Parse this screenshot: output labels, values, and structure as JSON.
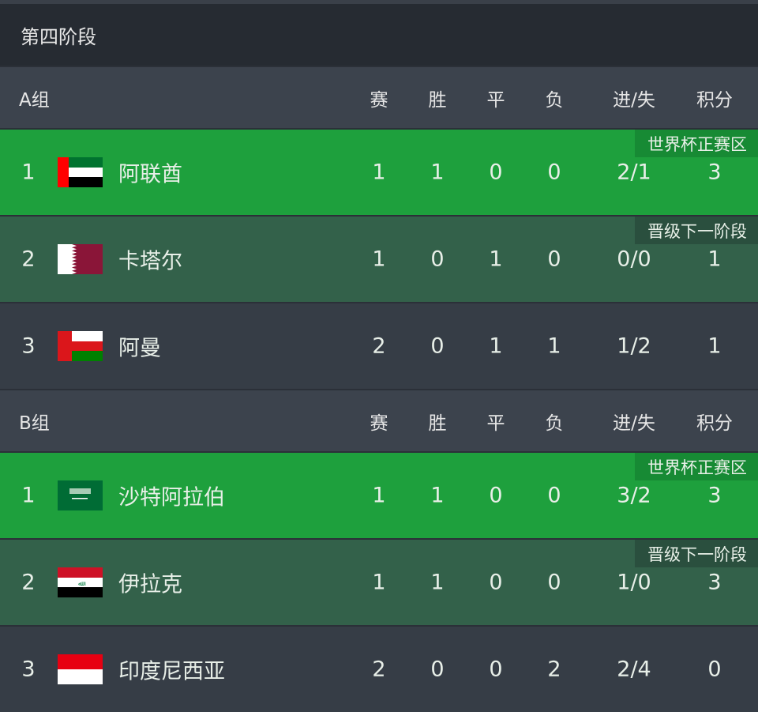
{
  "stage_title": "第四阶段",
  "columns": [
    "赛",
    "胜",
    "平",
    "负",
    "进/失",
    "积分"
  ],
  "colors": {
    "qualified": "#1ea03d",
    "next_stage": "#33614a",
    "default": "#363d46",
    "header": "#3c434d"
  },
  "groups": [
    {
      "name": "A组",
      "rows": [
        {
          "rank": "1",
          "team": "阿联酋",
          "flag": "uae-flag",
          "badge": "世界杯正赛区",
          "stats": [
            "1",
            "1",
            "0",
            "0",
            "2/1",
            "3"
          ]
        },
        {
          "rank": "2",
          "team": "卡塔尔",
          "flag": "qatar-flag",
          "badge": "晋级下一阶段",
          "stats": [
            "1",
            "0",
            "1",
            "0",
            "0/0",
            "1"
          ]
        },
        {
          "rank": "3",
          "team": "阿曼",
          "flag": "oman-flag",
          "badge": "",
          "stats": [
            "2",
            "0",
            "1",
            "1",
            "1/2",
            "1"
          ]
        }
      ]
    },
    {
      "name": "B组",
      "rows": [
        {
          "rank": "1",
          "team": "沙特阿拉伯",
          "flag": "saudi-flag",
          "badge": "世界杯正赛区",
          "stats": [
            "1",
            "1",
            "0",
            "0",
            "3/2",
            "3"
          ]
        },
        {
          "rank": "2",
          "team": "伊拉克",
          "flag": "iraq-flag",
          "badge": "晋级下一阶段",
          "stats": [
            "1",
            "1",
            "0",
            "0",
            "1/0",
            "3"
          ]
        },
        {
          "rank": "3",
          "team": "印度尼西亚",
          "flag": "indonesia-flag",
          "badge": "",
          "stats": [
            "2",
            "0",
            "0",
            "2",
            "2/4",
            "0"
          ]
        }
      ]
    }
  ]
}
